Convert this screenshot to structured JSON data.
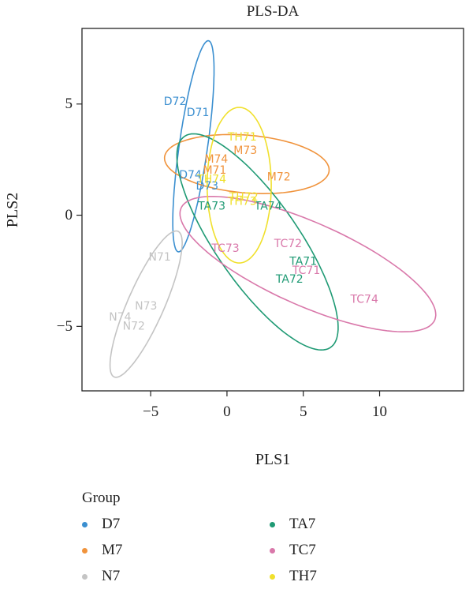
{
  "chart_data": {
    "type": "scatter",
    "title": "PLS-DA",
    "xlabel": "PLS1",
    "ylabel": "PLS2",
    "xlim": [
      -9.5,
      15.5
    ],
    "ylim": [
      -7.9,
      8.4
    ],
    "xticks": [
      "−5",
      "0",
      "5",
      "10"
    ],
    "xtick_values": [
      -5,
      0,
      5,
      10
    ],
    "yticks": [
      "−5",
      "0",
      "5"
    ],
    "ytick_values": [
      -5,
      0,
      5
    ],
    "legend_title": "Group",
    "legend_placement": "bottom",
    "grid": false,
    "series": [
      {
        "name": "D7",
        "color": "#3b8fd0",
        "points": [
          {
            "label": "D71",
            "x": -1.9,
            "y": 4.6
          },
          {
            "label": "D72",
            "x": -3.4,
            "y": 5.1
          },
          {
            "label": "D73",
            "x": -1.3,
            "y": 1.3
          },
          {
            "label": "D74",
            "x": -2.4,
            "y": 1.8
          }
        ],
        "ellipse": {
          "cx": -2.2,
          "cy": 3.1,
          "rx": 4.85,
          "ry": 0.92,
          "angle_deg": 78
        }
      },
      {
        "name": "M7",
        "color": "#f0933c",
        "points": [
          {
            "label": "M71",
            "x": -0.8,
            "y": 2.0
          },
          {
            "label": "M72",
            "x": 3.4,
            "y": 1.7
          },
          {
            "label": "M73",
            "x": 1.2,
            "y": 2.9
          },
          {
            "label": "M74",
            "x": -0.7,
            "y": 2.5
          }
        ],
        "ellipse": {
          "cx": 1.3,
          "cy": 2.3,
          "rx": 5.4,
          "ry": 1.3,
          "angle_deg": -3
        }
      },
      {
        "name": "N7",
        "color": "#c4c4c4",
        "points": [
          {
            "label": "N71",
            "x": -4.4,
            "y": -1.9
          },
          {
            "label": "N72",
            "x": -6.1,
            "y": -5.0
          },
          {
            "label": "N73",
            "x": -5.3,
            "y": -4.1
          },
          {
            "label": "N74",
            "x": -7.0,
            "y": -4.6
          }
        ],
        "ellipse": {
          "cx": -5.3,
          "cy": -4.0,
          "rx": 3.9,
          "ry": 1.1,
          "angle_deg": 56
        }
      },
      {
        "name": "TA7",
        "color": "#1f9a74",
        "points": [
          {
            "label": "TA71",
            "x": 5.0,
            "y": -2.1
          },
          {
            "label": "TA72",
            "x": 4.1,
            "y": -2.9
          },
          {
            "label": "TA73",
            "x": -1.0,
            "y": 0.4
          },
          {
            "label": "TA74",
            "x": 2.7,
            "y": 0.4
          }
        ],
        "ellipse": {
          "cx": 2.0,
          "cy": -1.2,
          "rx": 6.8,
          "ry": 2.3,
          "angle_deg": -42
        }
      },
      {
        "name": "TC7",
        "color": "#d978aa",
        "points": [
          {
            "label": "TC71",
            "x": 5.2,
            "y": -2.5
          },
          {
            "label": "TC72",
            "x": 4.0,
            "y": -1.3
          },
          {
            "label": "TC73",
            "x": -0.1,
            "y": -1.5
          },
          {
            "label": "TC74",
            "x": 9.0,
            "y": -3.8
          }
        ],
        "ellipse": {
          "cx": 5.3,
          "cy": -2.2,
          "rx": 8.7,
          "ry": 1.95,
          "angle_deg": -16
        }
      },
      {
        "name": "TH7",
        "color": "#f0e02c",
        "points": [
          {
            "label": "TH71",
            "x": 1.0,
            "y": 3.5
          },
          {
            "label": "TH72",
            "x": 1.1,
            "y": 0.8
          },
          {
            "label": "TH73",
            "x": 1.0,
            "y": 0.6
          },
          {
            "label": "TH74",
            "x": -1.0,
            "y": 1.6
          }
        ],
        "ellipse": {
          "cx": 0.8,
          "cy": 1.35,
          "rx": 3.5,
          "ry": 2.1,
          "angle_deg": 90
        }
      }
    ]
  }
}
